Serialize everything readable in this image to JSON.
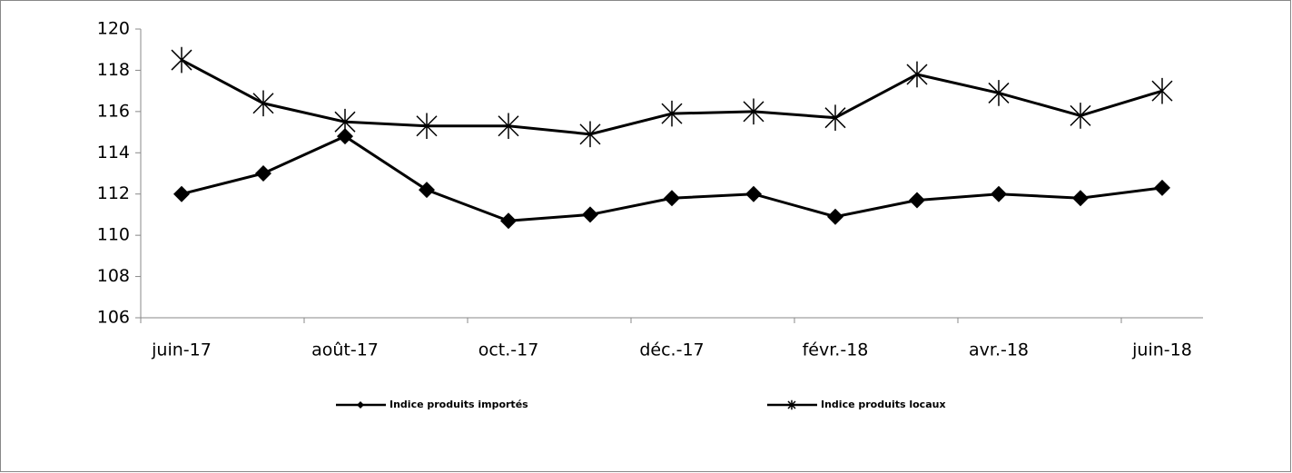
{
  "chart_data": {
    "type": "line",
    "categories": [
      "juin-17",
      null,
      "août-17",
      null,
      "oct.-17",
      null,
      "déc.-17",
      null,
      "févr.-18",
      null,
      "avr.-18",
      null,
      "juin-18"
    ],
    "series": [
      {
        "name": "Indice produits importés",
        "color": "#000000",
        "marker": "diamond",
        "values": [
          112.0,
          113.0,
          114.8,
          112.2,
          110.7,
          111.0,
          111.8,
          112.0,
          110.9,
          111.7,
          112.0,
          111.8,
          112.3
        ]
      },
      {
        "name": "Indice produits locaux",
        "color": "#000000",
        "marker": "asterisk",
        "values": [
          118.5,
          116.4,
          115.5,
          115.3,
          115.3,
          114.9,
          115.9,
          116.0,
          115.7,
          117.8,
          116.9,
          115.8,
          117.0
        ]
      }
    ],
    "ylim": [
      106,
      120
    ],
    "yticks": [
      106,
      108,
      110,
      112,
      114,
      116,
      118,
      120
    ],
    "grid": false,
    "legend": "bottom"
  }
}
